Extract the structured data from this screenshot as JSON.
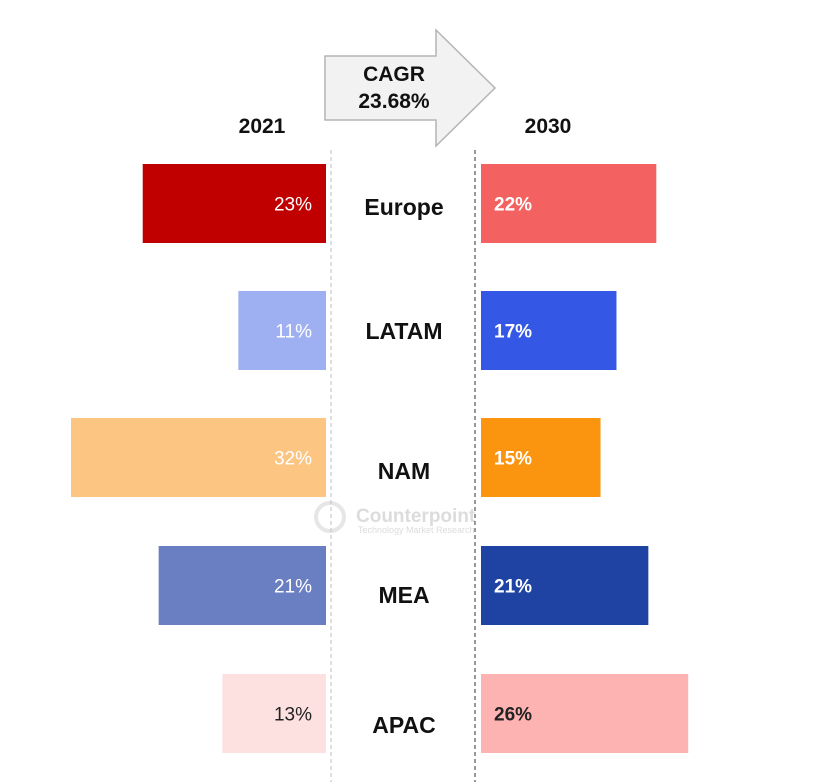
{
  "chart_data": {
    "type": "bar",
    "cagr_label": "CAGR",
    "cagr_value": "23.68%",
    "watermark": {
      "name": "Counterpoint",
      "tagline": "Technology Market Research"
    },
    "categories": [
      "Europe",
      "LATAM",
      "NAM",
      "MEA",
      "APAC"
    ],
    "series": [
      {
        "name": "2021",
        "values": [
          23,
          11,
          32,
          21,
          13
        ],
        "labels": [
          "23%",
          "11%",
          "32%",
          "21%",
          "13%"
        ],
        "colors": [
          "#c00000",
          "#9fb0f2",
          "#fcc682",
          "#6a7fc2",
          "#fde0e0"
        ],
        "label_colors": [
          "#ffffff",
          "#ffffff",
          "#ffffff",
          "#ffffff",
          "#222222"
        ]
      },
      {
        "name": "2030",
        "values": [
          22,
          17,
          15,
          21,
          26
        ],
        "labels": [
          "22%",
          "17%",
          "15%",
          "21%",
          "26%"
        ],
        "colors": [
          "#f46161",
          "#3457e6",
          "#fb940f",
          "#1f43a3",
          "#feb3b3"
        ],
        "label_colors": [
          "#ffffff",
          "#ffffff",
          "#ffffff",
          "#ffffff",
          "#222222"
        ]
      }
    ],
    "xlim": [
      0,
      32
    ],
    "grid": false,
    "legend": "none"
  }
}
